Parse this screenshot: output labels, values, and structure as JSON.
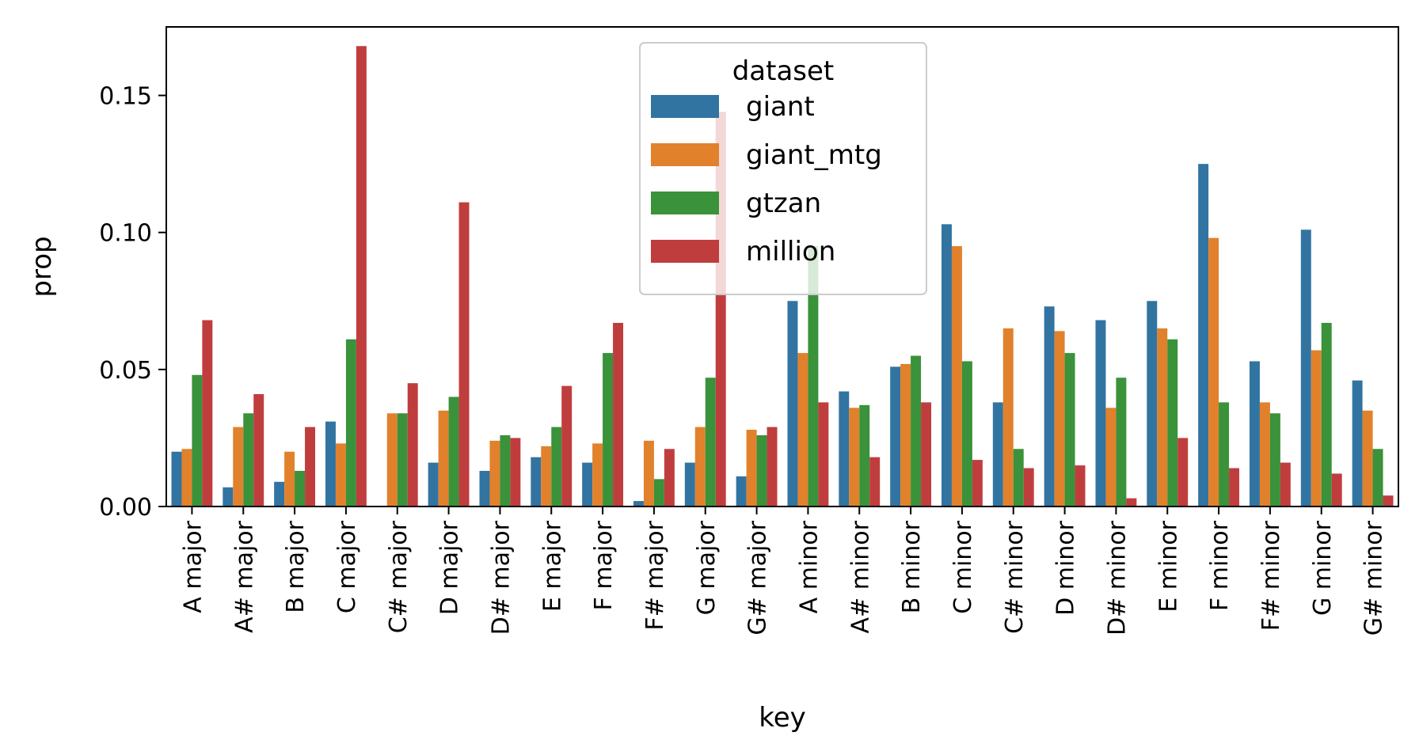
{
  "chart_data": {
    "type": "bar",
    "xlabel": "key",
    "ylabel": "prop",
    "ylim": [
      0,
      0.175
    ],
    "yticks": [
      0.0,
      0.05,
      0.1,
      0.15
    ],
    "ytick_labels": [
      "0.00",
      "0.05",
      "0.10",
      "0.15"
    ],
    "grid": false,
    "legend": {
      "title": "dataset",
      "placement": "top-center"
    },
    "categories": [
      "A major",
      "A# major",
      "B major",
      "C major",
      "C# major",
      "D major",
      "D# major",
      "E major",
      "F major",
      "F# major",
      "G major",
      "G# major",
      "A minor",
      "A# minor",
      "B minor",
      "C minor",
      "C# minor",
      "D minor",
      "D# minor",
      "E minor",
      "F minor",
      "F# minor",
      "G minor",
      "G# minor"
    ],
    "series": [
      {
        "name": "giant",
        "color": "#3274a1",
        "values": [
          0.02,
          0.007,
          0.009,
          0.031,
          0.0,
          0.016,
          0.013,
          0.018,
          0.016,
          0.002,
          0.016,
          0.011,
          0.075,
          0.042,
          0.051,
          0.103,
          0.038,
          0.073,
          0.068,
          0.075,
          0.125,
          0.053,
          0.101,
          0.046
        ]
      },
      {
        "name": "giant_mtg",
        "color": "#e1812c",
        "values": [
          0.021,
          0.029,
          0.02,
          0.023,
          0.034,
          0.035,
          0.024,
          0.022,
          0.023,
          0.024,
          0.029,
          0.028,
          0.056,
          0.036,
          0.052,
          0.095,
          0.065,
          0.064,
          0.036,
          0.065,
          0.098,
          0.038,
          0.057,
          0.035
        ]
      },
      {
        "name": "gtzan",
        "color": "#3a923a",
        "values": [
          0.048,
          0.034,
          0.013,
          0.061,
          0.034,
          0.04,
          0.026,
          0.029,
          0.056,
          0.01,
          0.047,
          0.026,
          0.095,
          0.037,
          0.055,
          0.053,
          0.021,
          0.056,
          0.047,
          0.061,
          0.038,
          0.034,
          0.067,
          0.021
        ]
      },
      {
        "name": "million",
        "color": "#c03d3e",
        "values": [
          0.068,
          0.041,
          0.029,
          0.168,
          0.045,
          0.111,
          0.025,
          0.044,
          0.067,
          0.021,
          0.144,
          0.029,
          0.038,
          0.018,
          0.038,
          0.017,
          0.014,
          0.015,
          0.003,
          0.025,
          0.014,
          0.016,
          0.012,
          0.004
        ]
      }
    ]
  }
}
